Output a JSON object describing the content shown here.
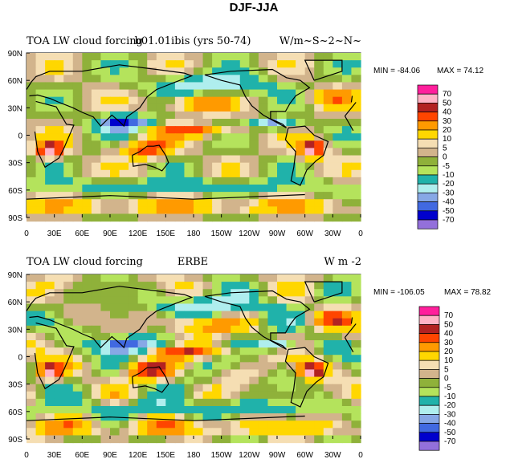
{
  "figure": {
    "title": "DJF-JJA"
  },
  "colorbar": {
    "levels": [
      "70",
      "50",
      "40",
      "30",
      "20",
      "10",
      "5",
      "0",
      "-5",
      "-10",
      "-20",
      "-30",
      "-40",
      "-50",
      "-70"
    ],
    "colors": [
      "#ff1f9c",
      "#ffb3c6",
      "#b22222",
      "#ff4500",
      "#ff9a00",
      "#ffd700",
      "#f5deb3",
      "#d2b48c",
      "#8fb13a",
      "#b4e35c",
      "#20b2aa",
      "#afeeee",
      "#87a8e6",
      "#4169e1",
      "#0000cd",
      "#9370db"
    ]
  },
  "axes": {
    "x_ticks": [
      "0",
      "30E",
      "60E",
      "90E",
      "120E",
      "150E",
      "180",
      "150W",
      "120W",
      "90W",
      "60W",
      "30W",
      "0"
    ],
    "y_ticks": [
      "90N",
      "60N",
      "30N",
      "0",
      "30S",
      "60S",
      "90S"
    ]
  },
  "chart_data": [
    {
      "type": "heatmap",
      "title_left": "TOA LW cloud forcing",
      "title_center": "b01.01ibis (yrs 50-74)",
      "title_right": "W/m~S~2~N~",
      "min_label": "MIN = -84.06",
      "max_label": "MAX =  74.12",
      "xlim": [
        0,
        360
      ],
      "ylim": [
        -90,
        90
      ]
    },
    {
      "type": "heatmap",
      "title_left": "TOA LW cloud forcing",
      "title_center": "ERBE",
      "title_right": "W m -2",
      "min_label": "MIN = -106.05",
      "max_label": "MAX =  78.82",
      "xlim": [
        0,
        360
      ],
      "ylim": [
        -90,
        90
      ]
    }
  ]
}
